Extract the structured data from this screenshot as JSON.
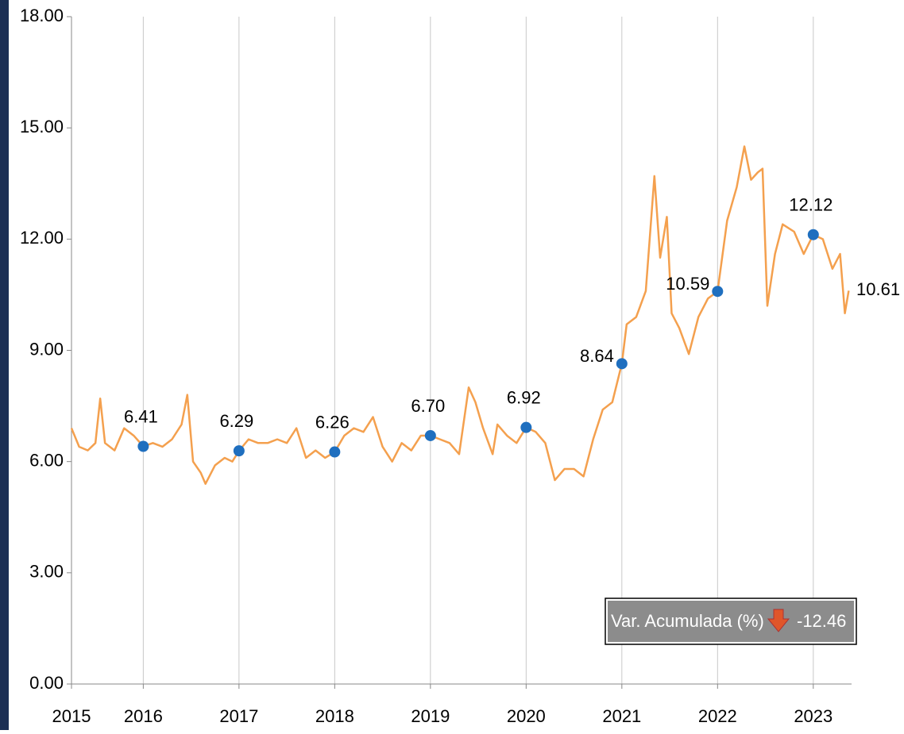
{
  "chart_data": {
    "type": "line",
    "x": [
      2015.25,
      2015.33,
      2015.42,
      2015.5,
      2015.55,
      2015.6,
      2015.7,
      2015.8,
      2015.9,
      2016.0,
      2016.1,
      2016.2,
      2016.3,
      2016.4,
      2016.46,
      2016.52,
      2016.6,
      2016.65,
      2016.75,
      2016.85,
      2016.93,
      2017.0,
      2017.1,
      2017.2,
      2017.3,
      2017.4,
      2017.5,
      2017.6,
      2017.7,
      2017.8,
      2017.9,
      2018.0,
      2018.1,
      2018.2,
      2018.3,
      2018.4,
      2018.5,
      2018.6,
      2018.7,
      2018.8,
      2018.9,
      2019.0,
      2019.1,
      2019.2,
      2019.3,
      2019.4,
      2019.47,
      2019.55,
      2019.65,
      2019.7,
      2019.8,
      2019.9,
      2020.0,
      2020.1,
      2020.2,
      2020.3,
      2020.4,
      2020.5,
      2020.6,
      2020.7,
      2020.8,
      2020.9,
      2021.0,
      2021.05,
      2021.15,
      2021.25,
      2021.34,
      2021.4,
      2021.47,
      2021.52,
      2021.6,
      2021.7,
      2021.8,
      2021.9,
      2022.0,
      2022.1,
      2022.2,
      2022.28,
      2022.35,
      2022.42,
      2022.47,
      2022.52,
      2022.6,
      2022.68,
      2022.8,
      2022.9,
      2023.0,
      2023.1,
      2023.2,
      2023.28,
      2023.33,
      2023.37
    ],
    "series": [
      {
        "color": "#f4a04e",
        "values": [
          6.9,
          6.4,
          6.3,
          6.5,
          7.7,
          6.5,
          6.3,
          6.9,
          6.7,
          6.41,
          6.5,
          6.4,
          6.6,
          7.0,
          7.8,
          6.0,
          5.7,
          5.4,
          5.9,
          6.1,
          6.0,
          6.29,
          6.6,
          6.5,
          6.5,
          6.6,
          6.5,
          6.9,
          6.1,
          6.3,
          6.1,
          6.26,
          6.7,
          6.9,
          6.8,
          7.2,
          6.4,
          6.0,
          6.5,
          6.3,
          6.7,
          6.7,
          6.6,
          6.5,
          6.2,
          8.0,
          7.6,
          6.9,
          6.2,
          7.0,
          6.7,
          6.5,
          6.92,
          6.8,
          6.5,
          5.5,
          5.8,
          5.8,
          5.6,
          6.6,
          7.4,
          7.6,
          8.64,
          9.7,
          9.9,
          10.6,
          13.7,
          11.5,
          12.6,
          10.0,
          9.6,
          8.9,
          9.9,
          10.4,
          10.59,
          12.5,
          13.4,
          14.5,
          13.6,
          13.8,
          13.9,
          10.2,
          11.6,
          12.4,
          12.2,
          11.6,
          12.12,
          12.0,
          11.2,
          11.6,
          10.0,
          10.61
        ]
      }
    ],
    "markers": {
      "color": "#1f6fbf",
      "x": [
        2016.0,
        2017.0,
        2018.0,
        2019.0,
        2020.0,
        2021.0,
        2022.0,
        2023.0
      ],
      "values": [
        6.41,
        6.29,
        6.26,
        6.7,
        6.92,
        8.64,
        10.59,
        12.12
      ],
      "value_labels": [
        "6.41",
        "6.29",
        "6.26",
        "6.70",
        "6.92",
        "8.64",
        "10.59",
        "12.12"
      ]
    },
    "last_value": 10.61,
    "last_value_label": "10.61",
    "xlim": [
      2015.25,
      2023.4
    ],
    "xticks": [
      {
        "value": 2015.25,
        "label": "2015"
      },
      2016,
      2017,
      2018,
      2019,
      2020,
      2021,
      2022,
      2023
    ],
    "ylim": [
      0,
      18
    ],
    "yticks": [
      {
        "value": 0,
        "label": "0.00"
      },
      {
        "value": 3,
        "label": "3.00"
      },
      {
        "value": 6,
        "label": "6.00"
      },
      {
        "value": 9,
        "label": "9.00"
      },
      {
        "value": 12,
        "label": "12.00"
      },
      {
        "value": 15,
        "label": "15.00"
      },
      {
        "value": 18,
        "label": "18.00"
      }
    ],
    "grid": true,
    "summary": {
      "label": "Var. Acumulada (%)",
      "value": -12.46,
      "value_label": "-12.46"
    }
  }
}
